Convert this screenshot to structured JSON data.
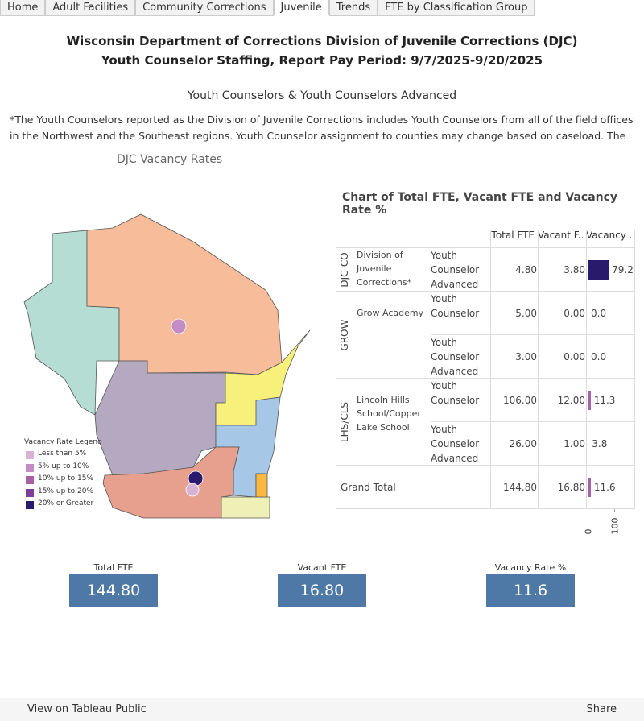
{
  "tabs": [
    "Home",
    "Adult Facilities",
    "Community Corrections",
    "Juvenile",
    "Trends",
    "FTE by Classification Group"
  ],
  "header": {
    "title_line1": "Wisconsin Department of Corrections Division of Juvenile Corrections (DJC)",
    "title_line2": "Youth Counselor Staffing, Report Pay Period: 9/7/2025-9/20/2025",
    "subtitle": "Youth Counselors & Youth Counselors Advanced",
    "note": "*The Youth Counselors reported as the Division of Juvenile Corrections includes Youth Counselors from all of the field offices in the Northwest and the Southeast regions. Youth Counselor assignment to counties may change based on caseload. The Youth"
  },
  "map": {
    "title": "DJC Vacancy Rates",
    "legend_title": "Vacancy Rate Legend",
    "legend": [
      {
        "label": "Less than 5%",
        "color": "#d9b3d6"
      },
      {
        "label": "5% up to 10%",
        "color": "#c48cc4"
      },
      {
        "label": "10% up to 15%",
        "color": "#a860a8"
      },
      {
        "label": "15% up to 20%",
        "color": "#7d3f98"
      },
      {
        "label": "20% or Greater",
        "color": "#2a1a6e"
      }
    ]
  },
  "table": {
    "title": "Chart of Total FTE, Vacant FTE and Vacancy Rate %",
    "columns": [
      "Total FTE",
      "Vacant F..",
      "Vacancy .."
    ],
    "groups": [
      {
        "label": "DJC-CO",
        "facility": "Division of Juvenile Corrections*",
        "rows": [
          {
            "classification": "Youth Counselor Advanced",
            "total_fte": "4.80",
            "vacant_fte": "3.80",
            "vacancy_rate": "79.2",
            "color": "#2a1a6e"
          }
        ]
      },
      {
        "label": "GROW",
        "facility": "Grow Academy",
        "rows": [
          {
            "classification": "Youth Counselor",
            "total_fte": "5.00",
            "vacant_fte": "0.00",
            "vacancy_rate": "0.0",
            "color": "#d9b3d6"
          },
          {
            "classification": "Youth Counselor Advanced",
            "total_fte": "3.00",
            "vacant_fte": "0.00",
            "vacancy_rate": "0.0",
            "color": "#d9b3d6"
          }
        ]
      },
      {
        "label": "LHS/CLS",
        "facility": "Lincoln Hills School/Copper Lake School",
        "rows": [
          {
            "classification": "Youth Counselor",
            "total_fte": "106.00",
            "vacant_fte": "12.00",
            "vacancy_rate": "11.3",
            "color": "#a860a8"
          },
          {
            "classification": "Youth Counselor Advanced",
            "total_fte": "26.00",
            "vacant_fte": "1.00",
            "vacancy_rate": "3.8",
            "color": "#d9b3d6"
          }
        ]
      }
    ],
    "grand_total": {
      "label": "Grand Total",
      "total_fte": "144.80",
      "vacant_fte": "16.80",
      "vacancy_rate": "11.6",
      "color": "#a860a8"
    },
    "axis_ticks": [
      0,
      100
    ]
  },
  "kpis": [
    {
      "label": "Total FTE",
      "value": "144.80"
    },
    {
      "label": "Vacant FTE",
      "value": "16.80"
    },
    {
      "label": "Vacancy Rate %",
      "value": "11.6"
    }
  ],
  "footer": {
    "link": "View on Tableau Public",
    "share": "Share"
  }
}
